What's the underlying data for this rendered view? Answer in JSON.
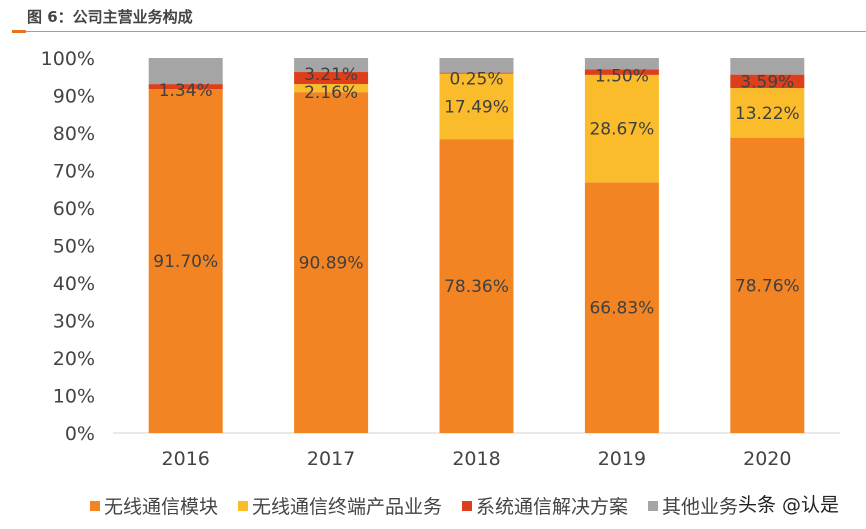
{
  "title": "图 6：公司主营业务构成",
  "watermark": "头条 @认是",
  "chart_data": {
    "type": "stacked-bar",
    "title": "图 6：公司主营业务构成",
    "categories": [
      "2016",
      "2017",
      "2018",
      "2019",
      "2020"
    ],
    "ylim": [
      0,
      100
    ],
    "yticks": [
      "0%",
      "10%",
      "20%",
      "30%",
      "40%",
      "50%",
      "60%",
      "70%",
      "80%",
      "90%",
      "100%"
    ],
    "legend_position": "bottom",
    "grid": false,
    "series": [
      {
        "name": "无线通信模块",
        "color": "#f28424",
        "values": [
          91.7,
          90.89,
          78.36,
          66.83,
          78.76
        ],
        "labels": [
          "91.70%",
          "90.89%",
          "78.36%",
          "66.83%",
          "78.76%"
        ]
      },
      {
        "name": "无线通信终端产品业务",
        "color": "#fbbc2c",
        "values": [
          0,
          2.16,
          17.49,
          28.67,
          13.22
        ],
        "labels": [
          "",
          "2.16%",
          "17.49%",
          "28.67%",
          "13.22%"
        ]
      },
      {
        "name": "系统通信解决方案",
        "color": "#dd3f1b",
        "values": [
          1.34,
          3.21,
          0.25,
          1.5,
          3.59
        ],
        "labels": [
          "1.34%",
          "3.21%",
          "0.25%",
          "1.50%",
          "3.59%"
        ]
      },
      {
        "name": "其他业务",
        "color": "#a5a5a5",
        "values": [
          6.96,
          3.74,
          3.9,
          3.0,
          4.43
        ],
        "labels": [
          "",
          "",
          "",
          "",
          ""
        ]
      }
    ]
  }
}
